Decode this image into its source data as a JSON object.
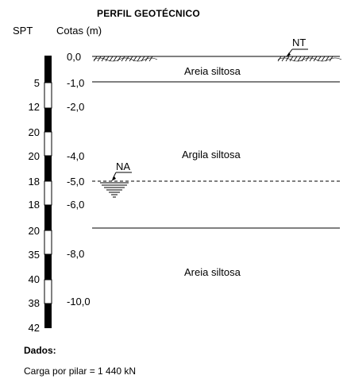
{
  "title": "PERFIL GEOTÉCNICO",
  "headers": {
    "spt": "SPT",
    "cotas": "Cotas (m)"
  },
  "spt_values": [
    "5",
    "12",
    "20",
    "20",
    "18",
    "18",
    "20",
    "35",
    "40",
    "38",
    "42"
  ],
  "cotas": [
    "0,0",
    "-1,0",
    "-2,0",
    "-4,0",
    "-5,0",
    "-6,0",
    "-8,0",
    "-10,0"
  ],
  "layers": [
    "Areia siltosa",
    "Argila siltosa",
    "Areia siltosa"
  ],
  "markers": {
    "nt": "NT",
    "na": "NA"
  },
  "footer": {
    "dados": "Dados:",
    "carga": "Carga por pilar = 1 440 kN"
  }
}
